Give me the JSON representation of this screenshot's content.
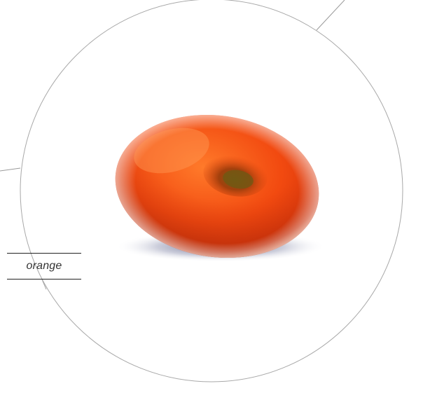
{
  "product": {
    "label": "orange",
    "colors": {
      "body_light": "#ff8a3a",
      "body_mid": "#f04d12",
      "body_dark": "#c5300b",
      "hole": "#8a5a10",
      "line": "#9a9a9a",
      "label_rule": "#222222",
      "label_text": "#333333"
    },
    "icon": "donut-pouf-illustration"
  }
}
